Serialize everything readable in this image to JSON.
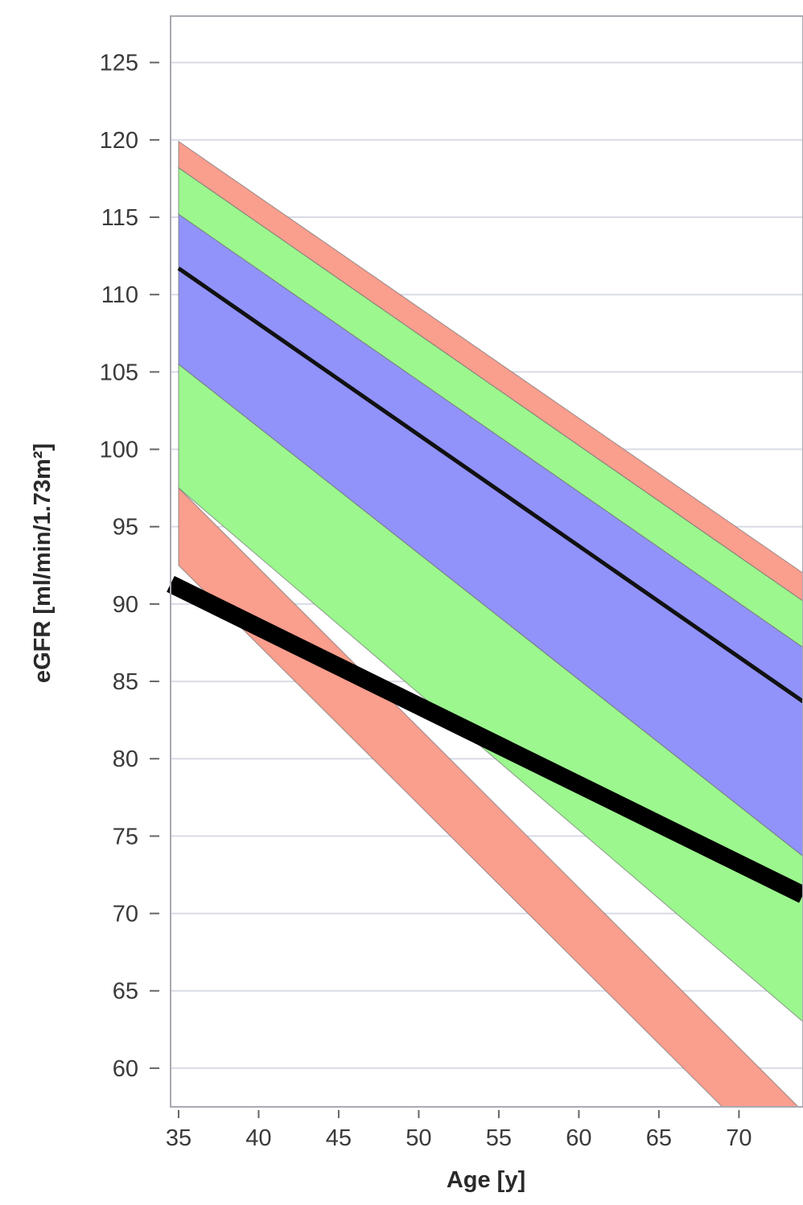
{
  "chart_data": {
    "type": "area",
    "title": "",
    "xlabel": "Age [y]",
    "ylabel": "eGFR [ml/min/1.73m²]",
    "xlim": [
      34.5,
      74
    ],
    "ylim": [
      57.5,
      128
    ],
    "x_ticks": [
      35,
      40,
      45,
      50,
      55,
      60,
      65,
      70
    ],
    "y_ticks": [
      60,
      65,
      70,
      75,
      80,
      85,
      90,
      95,
      100,
      105,
      110,
      115,
      120,
      125
    ],
    "grid": "horizontal",
    "x": [
      35,
      74
    ],
    "bands": [
      {
        "color": "#fa9e8e",
        "lower": [
          92.5,
          52.3
        ],
        "upper": [
          97.5,
          57.2
        ]
      },
      {
        "color": "#9cf78e",
        "lower": [
          97.5,
          63.0
        ],
        "upper": [
          105.5,
          73.7
        ]
      },
      {
        "color": "#9193fb",
        "lower": [
          105.5,
          73.7
        ],
        "upper": [
          115.2,
          87.2
        ]
      },
      {
        "color": "#9cf78e",
        "lower": [
          115.2,
          87.2
        ],
        "upper": [
          118.2,
          90.2
        ]
      },
      {
        "color": "#fa9e8e",
        "lower": [
          118.2,
          90.2
        ],
        "upper": [
          119.9,
          92.0
        ]
      }
    ],
    "series": [
      {
        "x": [
          35,
          74
        ],
        "values": [
          111.7,
          83.7
        ],
        "color": "#111111"
      },
      {
        "x": [
          34.5,
          74
        ],
        "values": [
          91.3,
          71.2
        ],
        "color": "#000000"
      }
    ]
  }
}
